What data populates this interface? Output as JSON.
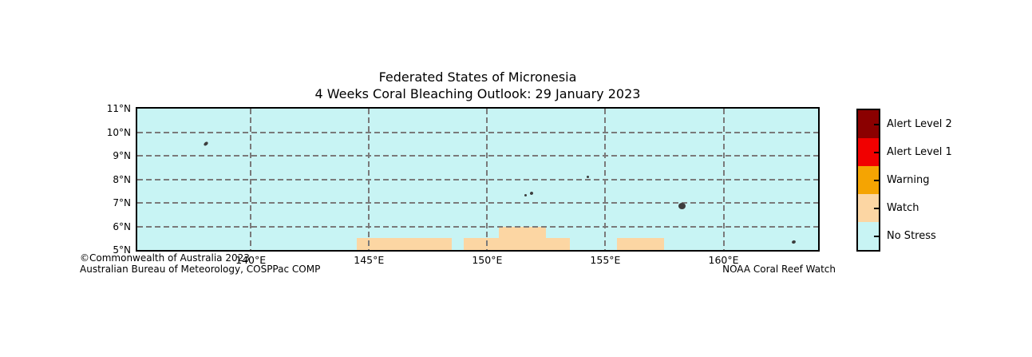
{
  "title": {
    "line1": "Federated States of Micronesia",
    "line2": "4 Weeks Coral Bleaching Outlook: 29 January 2023"
  },
  "credits": {
    "copyright": "©Commonwealth of Australia 2023",
    "agency": "Australian Bureau of Meteorology, COSPPac COMP",
    "noaa": "NOAA Coral Reef Watch"
  },
  "legend": {
    "items": [
      {
        "label": "Alert Level 2",
        "color": "#8b0000"
      },
      {
        "label": "Alert Level 1",
        "color": "#f10000"
      },
      {
        "label": "Warning",
        "color": "#f5a402"
      },
      {
        "label": "Watch",
        "color": "#fcd6a3"
      },
      {
        "label": "No Stress",
        "color": "#c8f4f4"
      }
    ]
  },
  "chart_data": {
    "type": "map",
    "lon_range": [
      135.2,
      164.0
    ],
    "lat_range": [
      5,
      11
    ],
    "x_ticks": [
      {
        "lon": 140,
        "label": "140°E"
      },
      {
        "lon": 145,
        "label": "145°E"
      },
      {
        "lon": 150,
        "label": "150°E"
      },
      {
        "lon": 155,
        "label": "155°E"
      },
      {
        "lon": 160,
        "label": "160°E"
      }
    ],
    "y_ticks": [
      {
        "lat": 11,
        "label": "11°N"
      },
      {
        "lat": 10,
        "label": "10°N"
      },
      {
        "lat": 9,
        "label": "9°N"
      },
      {
        "lat": 8,
        "label": "8°N"
      },
      {
        "lat": 7,
        "label": "7°N"
      },
      {
        "lat": 6,
        "label": "6°N"
      },
      {
        "lat": 5,
        "label": "5°N"
      }
    ],
    "grid_lons": [
      140,
      145,
      150,
      155,
      160
    ],
    "grid_lats": [
      6,
      7,
      8,
      9,
      10
    ],
    "colors": {
      "sea_no_stress": "#c8f4f4",
      "watch": "#fcd6a3",
      "grid": "#7a7a7a",
      "land": "#3d3d3d"
    },
    "watch_regions": [
      {
        "lon_min": 144.5,
        "lon_max": 148.5,
        "lat_min": 5.0,
        "lat_max": 5.5
      },
      {
        "lon_min": 149.0,
        "lon_max": 153.5,
        "lat_min": 5.0,
        "lat_max": 5.5
      },
      {
        "lon_min": 150.5,
        "lon_max": 152.5,
        "lat_min": 5.5,
        "lat_max": 6.0
      },
      {
        "lon_min": 155.5,
        "lon_max": 157.5,
        "lat_min": 5.0,
        "lat_max": 5.5
      }
    ],
    "islands": [
      {
        "lon": 138.1,
        "lat": 9.5,
        "w": 6,
        "h": 4,
        "rot": -40
      },
      {
        "lon": 151.62,
        "lat": 7.33,
        "w": 3,
        "h": 3,
        "rot": 0
      },
      {
        "lon": 151.88,
        "lat": 7.4,
        "w": 4,
        "h": 4,
        "rot": 20
      },
      {
        "lon": 154.25,
        "lat": 8.1,
        "w": 3,
        "h": 3,
        "rot": 0
      },
      {
        "lon": 158.25,
        "lat": 6.87,
        "w": 9,
        "h": 8,
        "rot": 0
      },
      {
        "lon": 162.97,
        "lat": 5.35,
        "w": 5,
        "h": 4,
        "rot": -20
      }
    ]
  }
}
